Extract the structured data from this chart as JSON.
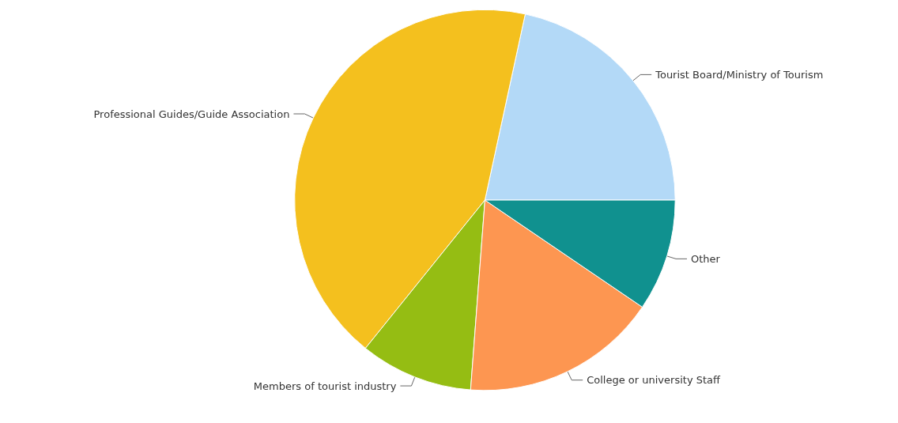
{
  "chart_data": {
    "type": "pie",
    "categories": [
      "Tourist Board/Ministry of Tourism",
      "Professional Guides/Guide Association",
      "Members of tourist industry",
      "College or university Staff",
      "Other"
    ],
    "values": [
      21.6,
      42.6,
      9.6,
      16.7,
      9.5
    ],
    "colors": [
      "#b3d9f7",
      "#f4c01e",
      "#95bd13",
      "#fd9651",
      "#10918f"
    ]
  }
}
